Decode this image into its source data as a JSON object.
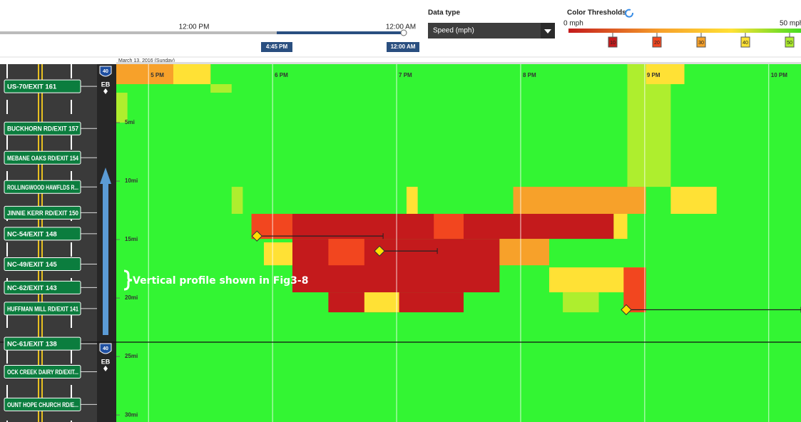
{
  "timeline": {
    "start_label": "12:00 PM",
    "end_label": "12:00 AM",
    "range_start": "4:45 PM",
    "range_end": "12:00 AM"
  },
  "data_type": {
    "label": "Data type",
    "selected": "Speed (mph)"
  },
  "color_thresholds": {
    "label": "Color Thresholds",
    "min_label": "0 mph",
    "max_label": "50 mph",
    "max": 50,
    "thresholds": [
      {
        "value": 10,
        "color": "#c41a1c"
      },
      {
        "value": 20,
        "color": "#f2461f"
      },
      {
        "value": 30,
        "color": "#f7a12a"
      },
      {
        "value": 40,
        "color": "#ffe135"
      },
      {
        "value": 50,
        "color": "#aeee2e"
      }
    ],
    "above_color": "#33f533"
  },
  "chart_data": {
    "type": "heatmap",
    "date": "March 13, 2016 (Sunday)",
    "xlim": [
      16.74,
      22.26
    ],
    "xticks": [
      {
        "value": 17,
        "label": "5 PM"
      },
      {
        "value": 18,
        "label": "6 PM"
      },
      {
        "value": 19,
        "label": "7 PM"
      },
      {
        "value": 20,
        "label": "8 PM"
      },
      {
        "value": 21,
        "label": "9 PM"
      },
      {
        "value": 22,
        "label": "10 PM"
      }
    ],
    "ylim": [
      0,
      30.6
    ],
    "yticks": [
      {
        "value": 5,
        "label": "5mi"
      },
      {
        "value": 10,
        "label": "10mi"
      },
      {
        "value": 15,
        "label": "15mi"
      },
      {
        "value": 20,
        "label": "20mi"
      },
      {
        "value": 25,
        "label": "25mi"
      },
      {
        "value": 30,
        "label": "30mi"
      }
    ],
    "grid": true,
    "cells": [
      {
        "time": [
          16.74,
          17.5
        ],
        "mile": [
          0,
          1.71
        ],
        "speed": 25
      },
      {
        "time": [
          17.2,
          17.5
        ],
        "mile": [
          0,
          1.71
        ],
        "speed": 35
      },
      {
        "time": [
          17.5,
          17.67
        ],
        "mile": [
          1.71,
          2.44
        ],
        "speed": 45
      },
      {
        "time": [
          16.74,
          16.83
        ],
        "mile": [
          2.44,
          5.0
        ],
        "speed": 45
      },
      {
        "time": [
          20.86,
          21.21
        ],
        "mile": [
          0,
          10.49
        ],
        "speed": 45
      },
      {
        "time": [
          21.01,
          21.32
        ],
        "mile": [
          0,
          1.71
        ],
        "speed": 35
      },
      {
        "time": [
          17.67,
          17.76
        ],
        "mile": [
          10.49,
          12.8
        ],
        "speed": 45
      },
      {
        "time": [
          19.08,
          19.17
        ],
        "mile": [
          10.49,
          12.8
        ],
        "speed": 35
      },
      {
        "time": [
          19.94,
          21.01
        ],
        "mile": [
          10.49,
          12.8
        ],
        "speed": 25
      },
      {
        "time": [
          21.21,
          21.58
        ],
        "mile": [
          10.49,
          12.8
        ],
        "speed": 35
      },
      {
        "time": [
          17.83,
          18.16
        ],
        "mile": [
          12.8,
          14.94
        ],
        "speed": 15
      },
      {
        "time": [
          18.16,
          20.75
        ],
        "mile": [
          12.8,
          14.94
        ],
        "speed": 5
      },
      {
        "time": [
          19.3,
          19.54
        ],
        "mile": [
          12.8,
          14.94
        ],
        "speed": 15
      },
      {
        "time": [
          20.75,
          20.86
        ],
        "mile": [
          12.8,
          14.94
        ],
        "speed": 35
      },
      {
        "time": [
          18.16,
          19.83
        ],
        "mile": [
          14.94,
          19.51
        ],
        "speed": 5
      },
      {
        "time": [
          18.45,
          18.74
        ],
        "mile": [
          14.94,
          17.2
        ],
        "speed": 15
      },
      {
        "time": [
          17.93,
          18.16
        ],
        "mile": [
          15.24,
          17.2
        ],
        "speed": 35
      },
      {
        "time": [
          19.83,
          20.23
        ],
        "mile": [
          14.94,
          17.2
        ],
        "speed": 25
      },
      {
        "time": [
          18.45,
          19.54
        ],
        "mile": [
          19.51,
          21.22
        ],
        "speed": 5
      },
      {
        "time": [
          18.74,
          19.02
        ],
        "mile": [
          19.51,
          21.22
        ],
        "speed": 35
      },
      {
        "time": [
          20.23,
          21.01
        ],
        "mile": [
          17.38,
          19.51
        ],
        "speed": 35
      },
      {
        "time": [
          20.83,
          21.01
        ],
        "mile": [
          17.38,
          21.22
        ],
        "speed": 15
      },
      {
        "time": [
          20.34,
          20.63
        ],
        "mile": [
          19.51,
          21.22
        ],
        "speed": 45
      }
    ],
    "incidents": [
      {
        "time": [
          17.874,
          18.891
        ],
        "mile": 14.7
      },
      {
        "time": [
          18.862,
          19.328
        ],
        "mile": 15.98
      },
      {
        "time": [
          20.851,
          22.26
        ],
        "mile": 21.0
      }
    ]
  },
  "exits": [
    {
      "label": "US-70/EXIT 161",
      "mile": 1.9
    },
    {
      "label": "BUCKHORN RD/EXIT 157",
      "mile": 5.5
    },
    {
      "label": "MEBANE OAKS RD/EXIT 154",
      "mile": 8.0
    },
    {
      "label": "ROLLINGWOOD HAWFLDS R...",
      "mile": 10.5
    },
    {
      "label": "JINNIE KERR RD/EXIT 150",
      "mile": 12.7
    },
    {
      "label": "NC-54/EXIT 148",
      "mile": 14.5
    },
    {
      "label": "NC-49/EXIT 145",
      "mile": 17.1
    },
    {
      "label": "NC-62/EXIT 143",
      "mile": 19.1
    },
    {
      "label": "HUFFMAN MILL RD/EXIT 141",
      "mile": 20.9
    },
    {
      "label": "NC-61/EXIT 138",
      "mile": 23.9
    },
    {
      "label": "OCK CREEK DAIRY RD/EXIT...",
      "mile": 26.3
    },
    {
      "label": "OUNT HOPE CHURCH RD/E...",
      "mile": 29.1
    }
  ],
  "shield": {
    "route": "40",
    "direction": "EB"
  },
  "annotation": "Vertical profile shown in Fig3-8"
}
